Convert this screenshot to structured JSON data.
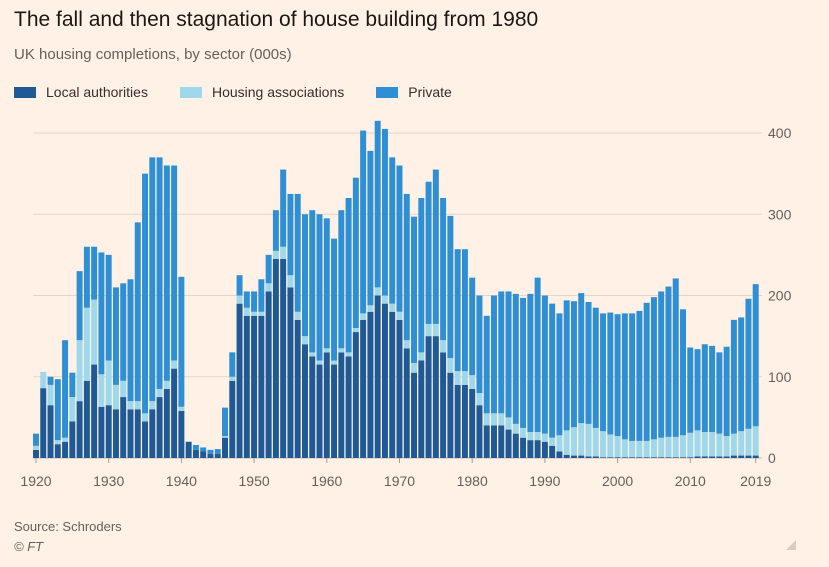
{
  "header": {
    "title": "The fall and then stagnation of house building from 1980",
    "subtitle": "UK housing completions, by sector (000s)"
  },
  "footer": {
    "source": "Source: Schroders",
    "copyright": "© FT"
  },
  "colors": {
    "background": "#fff1e5",
    "local_authorities": "#1f5a96",
    "housing_associations": "#9fd8ea",
    "private": "#2f8fd4",
    "gridline": "#e3d5c9",
    "axis_text": "#66605c"
  },
  "chart_data": {
    "type": "bar",
    "stacked": true,
    "title": "The fall and then stagnation of house building from 1980",
    "subtitle": "UK housing completions, by sector (000s)",
    "xlabel": "",
    "ylabel": "",
    "ylim": [
      0,
      420
    ],
    "yticks": [
      0,
      100,
      200,
      300,
      400
    ],
    "xticks": [
      "1920",
      "1930",
      "1940",
      "1950",
      "1960",
      "1970",
      "1980",
      "1990",
      "2000",
      "2010",
      "2019"
    ],
    "y_axis_position": "right",
    "grid": true,
    "legend_position": "top-left",
    "categories": [
      1920,
      1921,
      1922,
      1923,
      1924,
      1925,
      1926,
      1927,
      1928,
      1929,
      1930,
      1931,
      1932,
      1933,
      1934,
      1935,
      1936,
      1937,
      1938,
      1939,
      1940,
      1941,
      1942,
      1943,
      1944,
      1945,
      1946,
      1947,
      1948,
      1949,
      1950,
      1951,
      1952,
      1953,
      1954,
      1955,
      1956,
      1957,
      1958,
      1959,
      1960,
      1961,
      1962,
      1963,
      1964,
      1965,
      1966,
      1967,
      1968,
      1969,
      1970,
      1971,
      1972,
      1973,
      1974,
      1975,
      1976,
      1977,
      1978,
      1979,
      1980,
      1981,
      1982,
      1983,
      1984,
      1985,
      1986,
      1987,
      1988,
      1989,
      1990,
      1991,
      1992,
      1993,
      1994,
      1995,
      1996,
      1997,
      1998,
      1999,
      2000,
      2001,
      2002,
      2003,
      2004,
      2005,
      2006,
      2007,
      2008,
      2009,
      2010,
      2011,
      2012,
      2013,
      2014,
      2015,
      2016,
      2017,
      2018,
      2019
    ],
    "series": [
      {
        "name": "Local authorities",
        "values": [
          10,
          86,
          65,
          17,
          20,
          45,
          70,
          95,
          115,
          63,
          65,
          60,
          75,
          60,
          60,
          45,
          60,
          75,
          85,
          110,
          58,
          20,
          10,
          8,
          5,
          5,
          25,
          95,
          190,
          175,
          175,
          175,
          205,
          245,
          245,
          210,
          170,
          140,
          125,
          115,
          130,
          115,
          130,
          125,
          155,
          170,
          180,
          200,
          190,
          180,
          170,
          135,
          105,
          120,
          150,
          150,
          130,
          105,
          90,
          90,
          85,
          65,
          40,
          40,
          40,
          35,
          30,
          25,
          22,
          22,
          20,
          15,
          8,
          4,
          3,
          3,
          2,
          2,
          1,
          1,
          1,
          1,
          1,
          1,
          1,
          1,
          1,
          1,
          1,
          1,
          1,
          2,
          2,
          2,
          2,
          2,
          3,
          3,
          3,
          3
        ]
      },
      {
        "name": "Housing associations",
        "values": [
          5,
          20,
          25,
          5,
          5,
          30,
          75,
          90,
          80,
          40,
          55,
          30,
          20,
          10,
          10,
          10,
          10,
          10,
          10,
          10,
          5,
          0,
          0,
          0,
          0,
          0,
          2,
          5,
          10,
          10,
          5,
          5,
          10,
          10,
          15,
          15,
          10,
          10,
          5,
          5,
          5,
          5,
          5,
          5,
          5,
          8,
          8,
          10,
          10,
          10,
          10,
          10,
          12,
          10,
          15,
          15,
          15,
          18,
          17,
          17,
          17,
          15,
          15,
          15,
          15,
          15,
          12,
          12,
          10,
          10,
          10,
          10,
          20,
          30,
          35,
          40,
          40,
          35,
          32,
          28,
          26,
          22,
          20,
          20,
          20,
          22,
          24,
          25,
          25,
          27,
          30,
          32,
          30,
          30,
          28,
          25,
          27,
          30,
          33,
          36
        ]
      },
      {
        "name": "Private",
        "values": [
          15,
          0,
          10,
          75,
          120,
          30,
          85,
          75,
          65,
          150,
          130,
          120,
          120,
          150,
          220,
          295,
          300,
          285,
          265,
          240,
          160,
          0,
          6,
          5,
          5,
          6,
          35,
          30,
          25,
          20,
          25,
          40,
          35,
          50,
          95,
          100,
          145,
          150,
          175,
          180,
          160,
          150,
          170,
          190,
          185,
          225,
          190,
          205,
          205,
          180,
          180,
          180,
          180,
          190,
          175,
          190,
          175,
          175,
          150,
          150,
          120,
          120,
          120,
          145,
          150,
          155,
          160,
          160,
          170,
          190,
          170,
          165,
          150,
          160,
          155,
          160,
          150,
          148,
          145,
          150,
          150,
          155,
          157,
          160,
          170,
          175,
          180,
          185,
          195,
          155,
          105,
          100,
          108,
          106,
          100,
          110,
          140,
          140,
          160,
          175
        ]
      }
    ]
  }
}
